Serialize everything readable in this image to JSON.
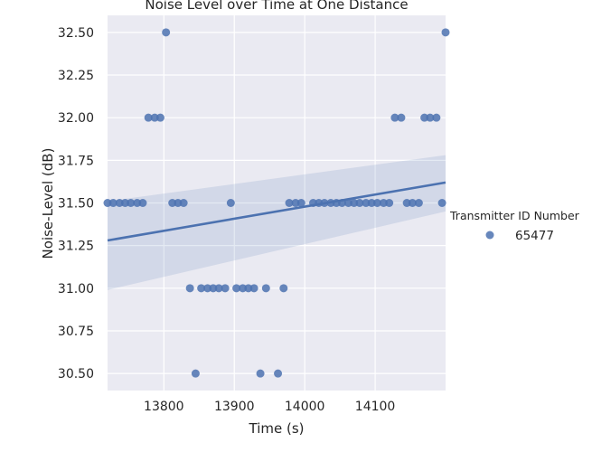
{
  "chart_data": {
    "type": "scatter",
    "title": "Noise Level over Time at One Distance",
    "xlabel": "Time (s)",
    "ylabel": "Noise-Level (dB)",
    "xlim": [
      13720,
      14200
    ],
    "ylim": [
      30.4,
      32.6
    ],
    "xticks": [
      13800,
      13900,
      14000,
      14100
    ],
    "yticks": [
      30.5,
      30.75,
      31.0,
      31.25,
      31.5,
      31.75,
      32.0,
      32.25,
      32.5
    ],
    "xtick_labels": [
      "13800",
      "13900",
      "14000",
      "14100"
    ],
    "ytick_labels": [
      "30.50",
      "30.75",
      "31.00",
      "31.25",
      "31.50",
      "31.75",
      "32.00",
      "32.25",
      "32.50"
    ],
    "grid": true,
    "background": "#EAEAF2",
    "legend": {
      "title": "Transmitter ID Number",
      "placement": "right",
      "entries": [
        {
          "label": "65477",
          "color": "#4C72B0"
        }
      ]
    },
    "series": [
      {
        "name": "65477",
        "color": "#4C72B0",
        "points": [
          [
            13720,
            31.5
          ],
          [
            13728,
            31.5
          ],
          [
            13737,
            31.5
          ],
          [
            13745,
            31.5
          ],
          [
            13753,
            31.5
          ],
          [
            13762,
            31.5
          ],
          [
            13770,
            31.5
          ],
          [
            13778,
            32.0
          ],
          [
            13787,
            32.0
          ],
          [
            13795,
            32.0
          ],
          [
            13803,
            32.5
          ],
          [
            13812,
            31.5
          ],
          [
            13820,
            31.5
          ],
          [
            13828,
            31.5
          ],
          [
            13837,
            31.0
          ],
          [
            13845,
            30.5
          ],
          [
            13853,
            31.0
          ],
          [
            13862,
            31.0
          ],
          [
            13870,
            31.0
          ],
          [
            13878,
            31.0
          ],
          [
            13887,
            31.0
          ],
          [
            13895,
            31.5
          ],
          [
            13903,
            31.0
          ],
          [
            13912,
            31.0
          ],
          [
            13920,
            31.0
          ],
          [
            13928,
            31.0
          ],
          [
            13937,
            30.5
          ],
          [
            13945,
            31.0
          ],
          [
            13962,
            30.5
          ],
          [
            13970,
            31.0
          ],
          [
            13978,
            31.5
          ],
          [
            13987,
            31.5
          ],
          [
            13995,
            31.5
          ],
          [
            14012,
            31.5
          ],
          [
            14020,
            31.5
          ],
          [
            14028,
            31.5
          ],
          [
            14037,
            31.5
          ],
          [
            14045,
            31.5
          ],
          [
            14053,
            31.5
          ],
          [
            14062,
            31.5
          ],
          [
            14070,
            31.5
          ],
          [
            14078,
            31.5
          ],
          [
            14087,
            31.5
          ],
          [
            14095,
            31.5
          ],
          [
            14103,
            31.5
          ],
          [
            14112,
            31.5
          ],
          [
            14120,
            31.5
          ],
          [
            14128,
            32.0
          ],
          [
            14137,
            32.0
          ],
          [
            14145,
            31.5
          ],
          [
            14153,
            31.5
          ],
          [
            14162,
            31.5
          ],
          [
            14170,
            32.0
          ],
          [
            14178,
            32.0
          ],
          [
            14187,
            32.0
          ],
          [
            14195,
            31.5
          ],
          [
            14200,
            32.5
          ]
        ]
      }
    ],
    "regression": {
      "x": [
        13720,
        14200
      ],
      "y": [
        31.28,
        31.62
      ],
      "ci_lower": [
        30.99,
        31.45
      ],
      "ci_upper": [
        31.51,
        31.78
      ],
      "color": "#4C72B0"
    }
  }
}
